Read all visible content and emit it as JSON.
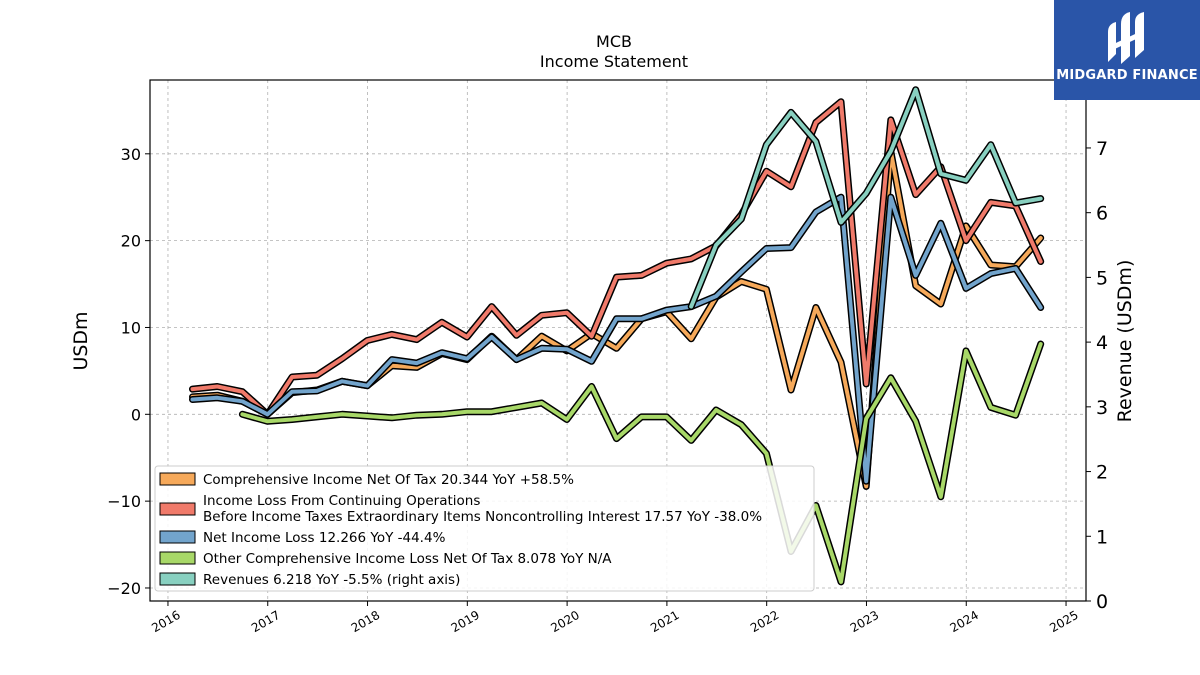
{
  "brand": {
    "name": "MIDGARD FINANCE",
    "color": "#2a55a8"
  },
  "chart_data": {
    "type": "line",
    "title": "MCB",
    "subtitle": "Income Statement",
    "ylabel": "USDm",
    "y2label": "Revenue (USDm)",
    "ylim": [
      -21.5,
      38.5
    ],
    "y2lim": [
      0,
      8.05
    ],
    "xlim": [
      2015.82,
      2025.2
    ],
    "xticks": [
      "2016",
      "2017",
      "2018",
      "2019",
      "2020",
      "2021",
      "2022",
      "2023",
      "2024",
      "2025"
    ],
    "yticks": [
      "−20",
      "−10",
      "0",
      "10",
      "20",
      "30"
    ],
    "y2ticks": [
      "0",
      "1",
      "2",
      "3",
      "4",
      "5",
      "6",
      "7"
    ],
    "grid": true,
    "legend_position": "lower-left",
    "series": [
      {
        "name": "Comprehensive Income Net Of Tax",
        "legend": "Comprehensive Income Net Of Tax  20.344 YoY +58.5%",
        "color": "#f6a95a",
        "axis": "left",
        "x": [
          "2016-03-31",
          "2016-06-30",
          "2016-09-30",
          "2016-12-31",
          "2017-03-31",
          "2017-06-30",
          "2017-09-30",
          "2017-12-31",
          "2018-03-31",
          "2018-06-30",
          "2018-09-30",
          "2018-12-31",
          "2019-03-31",
          "2019-06-30",
          "2019-09-30",
          "2019-12-31",
          "2020-03-31",
          "2020-06-30",
          "2020-09-30",
          "2020-12-31",
          "2021-03-31",
          "2021-06-30",
          "2021-09-30",
          "2021-12-31",
          "2022-03-31",
          "2022-06-30",
          "2022-09-30",
          "2022-12-31",
          "2023-03-31",
          "2023-06-30",
          "2023-09-30",
          "2023-12-31",
          "2024-03-31",
          "2024-06-30",
          "2024-09-30"
        ],
        "y": [
          2.0,
          2.2,
          1.5,
          0.0,
          2.5,
          2.8,
          3.8,
          3.3,
          5.6,
          5.4,
          7.0,
          6.3,
          9.0,
          6.3,
          9.0,
          7.3,
          9.3,
          7.6,
          11.0,
          11.8,
          8.7,
          13.5,
          15.3,
          14.4,
          2.8,
          12.3,
          6.0,
          -8.3,
          30.3,
          14.8,
          12.7,
          21.7,
          17.2,
          17.0,
          20.3
        ]
      },
      {
        "name": "Income Loss From Continuing Operations Before Income Taxes Extraordinary Items Noncontrolling Interest",
        "legend_line1": "Income Loss From Continuing Operations",
        "legend_line2": "Before Income Taxes Extraordinary Items Noncontrolling Interest  17.57 YoY -38.0%",
        "color": "#f07a6a",
        "axis": "left",
        "x": [
          "2016-03-31",
          "2016-06-30",
          "2016-09-30",
          "2016-12-31",
          "2017-03-31",
          "2017-06-30",
          "2017-09-30",
          "2017-12-31",
          "2018-03-31",
          "2018-06-30",
          "2018-09-30",
          "2018-12-31",
          "2019-03-31",
          "2019-06-30",
          "2019-09-30",
          "2019-12-31",
          "2020-03-31",
          "2020-06-30",
          "2020-09-30",
          "2020-12-31",
          "2021-03-31",
          "2021-06-30",
          "2021-09-30",
          "2021-12-31",
          "2022-03-31",
          "2022-06-30",
          "2022-09-30",
          "2022-12-31",
          "2023-03-31",
          "2023-06-30",
          "2023-09-30",
          "2023-12-31",
          "2024-03-31",
          "2024-06-30",
          "2024-09-30"
        ],
        "y": [
          2.9,
          3.2,
          2.6,
          0.0,
          4.3,
          4.5,
          6.4,
          8.5,
          9.2,
          8.6,
          10.6,
          8.9,
          12.4,
          9.1,
          11.4,
          11.7,
          9.0,
          15.8,
          16.0,
          17.4,
          17.9,
          19.4,
          23.0,
          28.0,
          26.2,
          33.6,
          36.0,
          3.5,
          33.9,
          25.3,
          28.5,
          20.0,
          24.4,
          24.0,
          17.6
        ]
      },
      {
        "name": "Net Income Loss",
        "legend": "Net Income Loss  12.266 YoY -44.4%",
        "color": "#72a4cc",
        "axis": "left",
        "x": [
          "2016-03-31",
          "2016-06-30",
          "2016-09-30",
          "2016-12-31",
          "2017-03-31",
          "2017-06-30",
          "2017-09-30",
          "2017-12-31",
          "2018-03-31",
          "2018-06-30",
          "2018-09-30",
          "2018-12-31",
          "2019-03-31",
          "2019-06-30",
          "2019-09-30",
          "2019-12-31",
          "2020-03-31",
          "2020-06-30",
          "2020-09-30",
          "2020-12-31",
          "2021-03-31",
          "2021-06-30",
          "2021-09-30",
          "2021-12-31",
          "2022-03-31",
          "2022-06-30",
          "2022-09-30",
          "2022-12-31",
          "2023-03-31",
          "2023-06-30",
          "2023-09-30",
          "2023-12-31",
          "2024-03-31",
          "2024-06-30",
          "2024-09-30"
        ],
        "y": [
          1.7,
          1.9,
          1.5,
          0.0,
          2.6,
          2.7,
          3.8,
          3.3,
          6.3,
          5.9,
          7.1,
          6.4,
          8.9,
          6.3,
          7.6,
          7.5,
          6.1,
          11.0,
          11.0,
          12.0,
          12.4,
          13.6,
          16.4,
          19.1,
          19.2,
          23.3,
          25.0,
          -7.7,
          25.0,
          16.0,
          22.0,
          14.5,
          16.2,
          16.8,
          12.3
        ]
      },
      {
        "name": "Other Comprehensive Income Loss Net Of Tax",
        "legend": "Other Comprehensive Income Loss Net Of Tax  8.078 YoY N/A",
        "color": "#a8d868",
        "axis": "left",
        "x": [
          "2016-09-30",
          "2016-12-31",
          "2017-03-31",
          "2017-06-30",
          "2017-09-30",
          "2017-12-31",
          "2018-03-31",
          "2018-06-30",
          "2018-09-30",
          "2018-12-31",
          "2019-03-31",
          "2019-06-30",
          "2019-09-30",
          "2019-12-31",
          "2020-03-31",
          "2020-06-30",
          "2020-09-30",
          "2020-12-31",
          "2021-03-31",
          "2021-06-30",
          "2021-09-30",
          "2021-12-31",
          "2022-03-31",
          "2022-06-30",
          "2022-09-30",
          "2022-12-31",
          "2023-03-31",
          "2023-06-30",
          "2023-09-30",
          "2023-12-31",
          "2024-03-31",
          "2024-06-30",
          "2024-09-30"
        ],
        "y": [
          0.0,
          -0.8,
          -0.6,
          -0.3,
          0.0,
          -0.2,
          -0.4,
          -0.1,
          0.0,
          0.3,
          0.3,
          0.8,
          1.3,
          -0.6,
          3.2,
          -2.8,
          -0.3,
          -0.3,
          -3.0,
          0.5,
          -1.2,
          -4.5,
          -15.8,
          -10.5,
          -19.3,
          -0.5,
          4.2,
          -0.8,
          -9.5,
          7.3,
          0.8,
          -0.1,
          8.1
        ]
      },
      {
        "name": "Revenues",
        "legend": "Revenues  6.218 YoY -5.5% (right axis)",
        "color": "#88d0c0",
        "axis": "right",
        "x": [
          "2021-03-31",
          "2021-06-30",
          "2021-09-30",
          "2021-12-31",
          "2022-03-31",
          "2022-06-30",
          "2022-09-30",
          "2022-12-31",
          "2023-03-31",
          "2023-06-30",
          "2023-09-30",
          "2023-12-31",
          "2024-03-31",
          "2024-06-30",
          "2024-09-30"
        ],
        "y": [
          4.55,
          5.5,
          5.9,
          7.05,
          7.55,
          7.1,
          5.85,
          6.3,
          6.95,
          7.9,
          6.6,
          6.5,
          7.05,
          6.15,
          6.218
        ]
      }
    ]
  }
}
